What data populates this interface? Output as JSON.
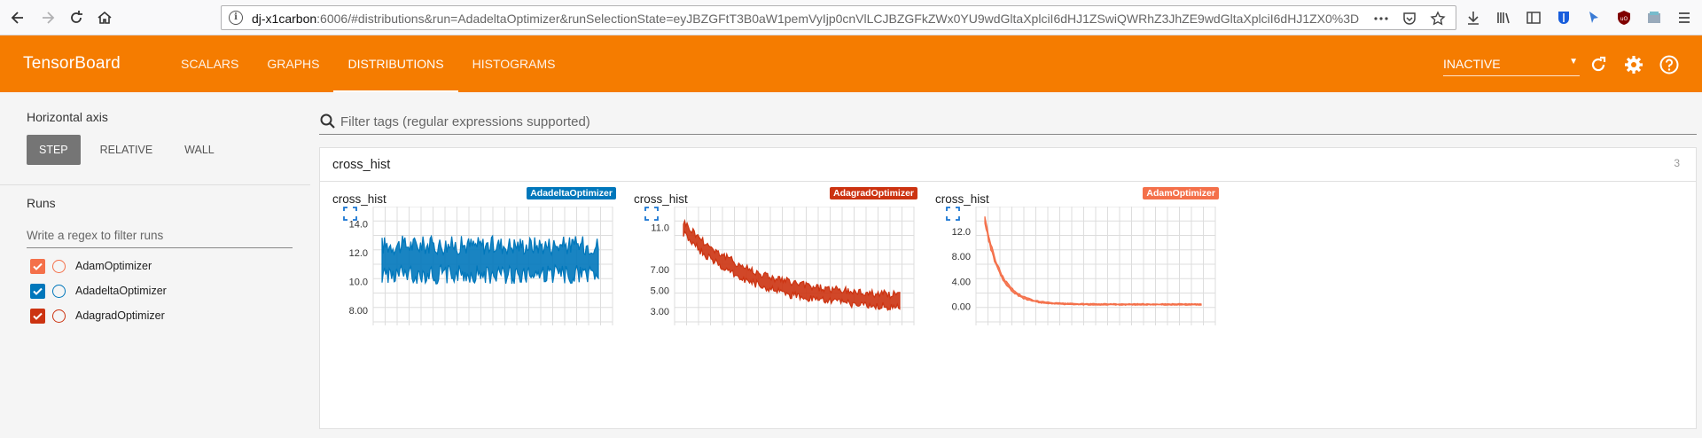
{
  "browser": {
    "url_host": "dj-x1carbon",
    "url_rest": ":6006/#distributions&run=AdadeltaOptimizer&runSelectionState=eyJBZGFtT3B0aW1pemVyIjp0cnVlLCJBZGFkZWx0YU9wdGltaXplciI6dHJ1ZSwiQWRhZ3JhZE9wdGltaXplciI6dHJ1ZX0%3D"
  },
  "header": {
    "brand": "TensorBoard",
    "tabs": [
      {
        "label": "SCALARS"
      },
      {
        "label": "GRAPHS"
      },
      {
        "label": "DISTRIBUTIONS"
      },
      {
        "label": "HISTOGRAMS"
      }
    ],
    "run_select": "INACTIVE"
  },
  "sidebar": {
    "axis_title": "Horizontal axis",
    "axis_options": [
      {
        "label": "STEP"
      },
      {
        "label": "RELATIVE"
      },
      {
        "label": "WALL"
      }
    ],
    "runs_title": "Runs",
    "runs_filter_placeholder": "Write a regex to filter runs",
    "runs": [
      {
        "label": "AdamOptimizer",
        "color": "#f4704a"
      },
      {
        "label": "AdadeltaOptimizer",
        "color": "#0077bb"
      },
      {
        "label": "AdagradOptimizer",
        "color": "#cc3311"
      }
    ]
  },
  "main": {
    "filter_placeholder": "Filter tags (regular expressions supported)",
    "pane_title": "cross_hist",
    "pane_count": "3"
  },
  "chart_data": [
    {
      "type": "area",
      "title": "cross_hist",
      "run": "AdadeltaOptimizer",
      "color": "#0077bb",
      "yticks": [
        "14.0",
        "12.0",
        "10.0",
        "8.00"
      ],
      "ylim": [
        7.2,
        15.2
      ],
      "trend": [
        11.5,
        11.5
      ],
      "noise": 1.2
    },
    {
      "type": "area",
      "title": "cross_hist",
      "run": "AdagradOptimizer",
      "color": "#cc3311",
      "yticks": [
        "11.0",
        "7.00",
        "5.00",
        "3.00"
      ],
      "ylim": [
        2.0,
        13.0
      ],
      "trend": [
        11.0,
        3.7
      ],
      "noise": 0.7
    },
    {
      "type": "area",
      "title": "cross_hist",
      "run": "AdamOptimizer",
      "color": "#f4704a",
      "yticks": [
        "12.0",
        "8.00",
        "4.00",
        "0.00"
      ],
      "ylim": [
        -2.5,
        16.0
      ],
      "trend": [
        14.0,
        0.3
      ],
      "noise": 0.25
    }
  ]
}
